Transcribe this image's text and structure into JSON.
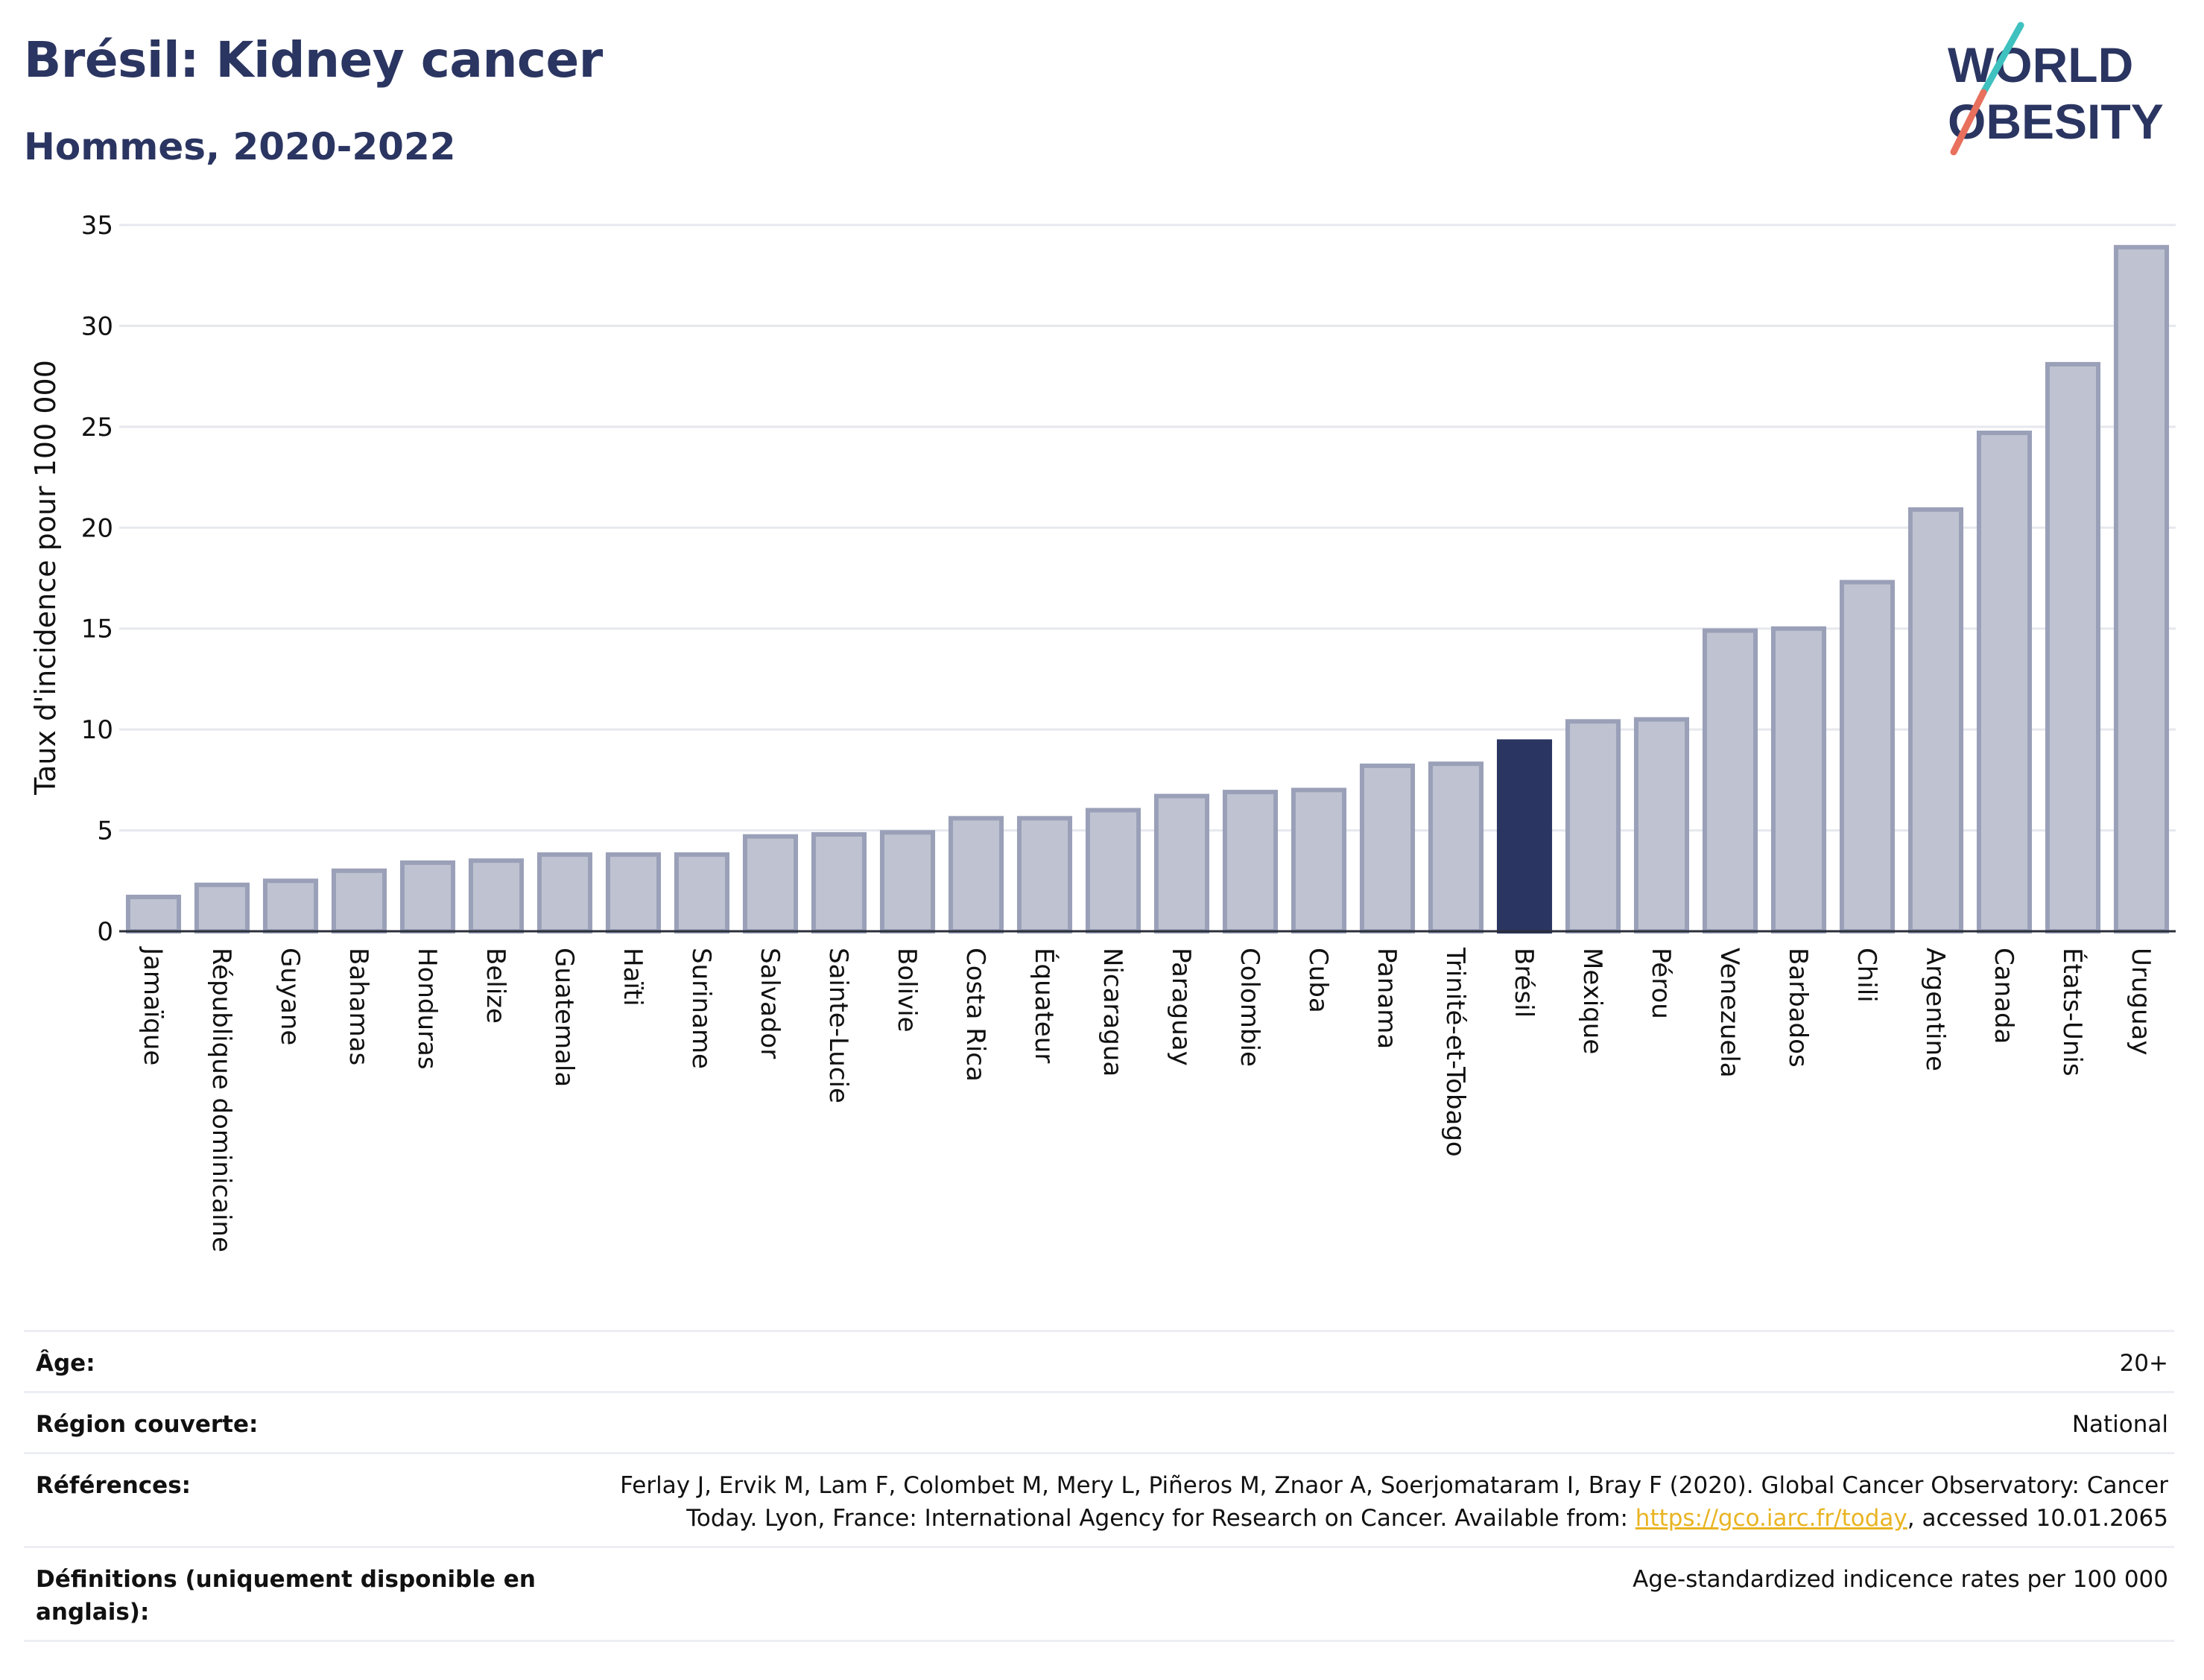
{
  "header": {
    "title": "Brésil: Kidney cancer",
    "subtitle": "Hommes, 2020-2022",
    "logo_line1": "WORLD",
    "logo_line2": "OBESITY"
  },
  "colors": {
    "bar": "#bfc3d1",
    "bar_border": "#9aa0b8",
    "highlight": "#2b3561",
    "text": "#2b3561",
    "link": "#e9b423"
  },
  "chart_data": {
    "type": "bar",
    "ylabel": "Taux d'incidence pour 100 000",
    "ylim": [
      0,
      35
    ],
    "yticks": [
      "0",
      "5",
      "10",
      "15",
      "20",
      "25",
      "30",
      "35"
    ],
    "grid": true,
    "highlight": "Brésil",
    "categories": [
      "Jamaïque",
      "République dominicaine",
      "Guyane",
      "Bahamas",
      "Honduras",
      "Belize",
      "Guatemala",
      "Haïti",
      "Suriname",
      "Salvador",
      "Sainte-Lucie",
      "Bolivie",
      "Costa Rica",
      "Équateur",
      "Nicaragua",
      "Paraguay",
      "Colombie",
      "Cuba",
      "Panama",
      "Trinité-et-Tobago",
      "Brésil",
      "Mexique",
      "Pérou",
      "Venezuela",
      "Barbados",
      "Chili",
      "Argentine",
      "Canada",
      "États-Unis",
      "Uruguay"
    ],
    "values": [
      1.7,
      2.3,
      2.5,
      3.0,
      3.4,
      3.5,
      3.8,
      3.8,
      3.8,
      4.7,
      4.8,
      4.9,
      5.6,
      5.6,
      6.0,
      6.7,
      6.9,
      7.0,
      8.2,
      8.3,
      9.4,
      10.4,
      10.5,
      14.9,
      15.0,
      17.3,
      20.9,
      24.7,
      28.1,
      33.9
    ]
  },
  "metadata": {
    "age_label": "Âge:",
    "age_value": "20+",
    "region_label": "Région couverte:",
    "region_value": "National",
    "references_label": "Références:",
    "references_line1": "Ferlay J, Ervik M, Lam F, Colombet M, Mery L, Piñeros M, Znaor A, Soerjomataram I, Bray F (2020). Global Cancer Observatory: Cancer",
    "references_line2_pre": "Today. Lyon, France: International Agency for Research on Cancer. Available from: ",
    "references_link": "https://gco.iarc.fr/today",
    "references_line2_post": ", accessed 10.01.2065",
    "definitions_label_line1": "Définitions (uniquement disponible en",
    "definitions_label_line2": "anglais):",
    "definitions_value": "Age-standardized indicence rates per 100 000"
  }
}
